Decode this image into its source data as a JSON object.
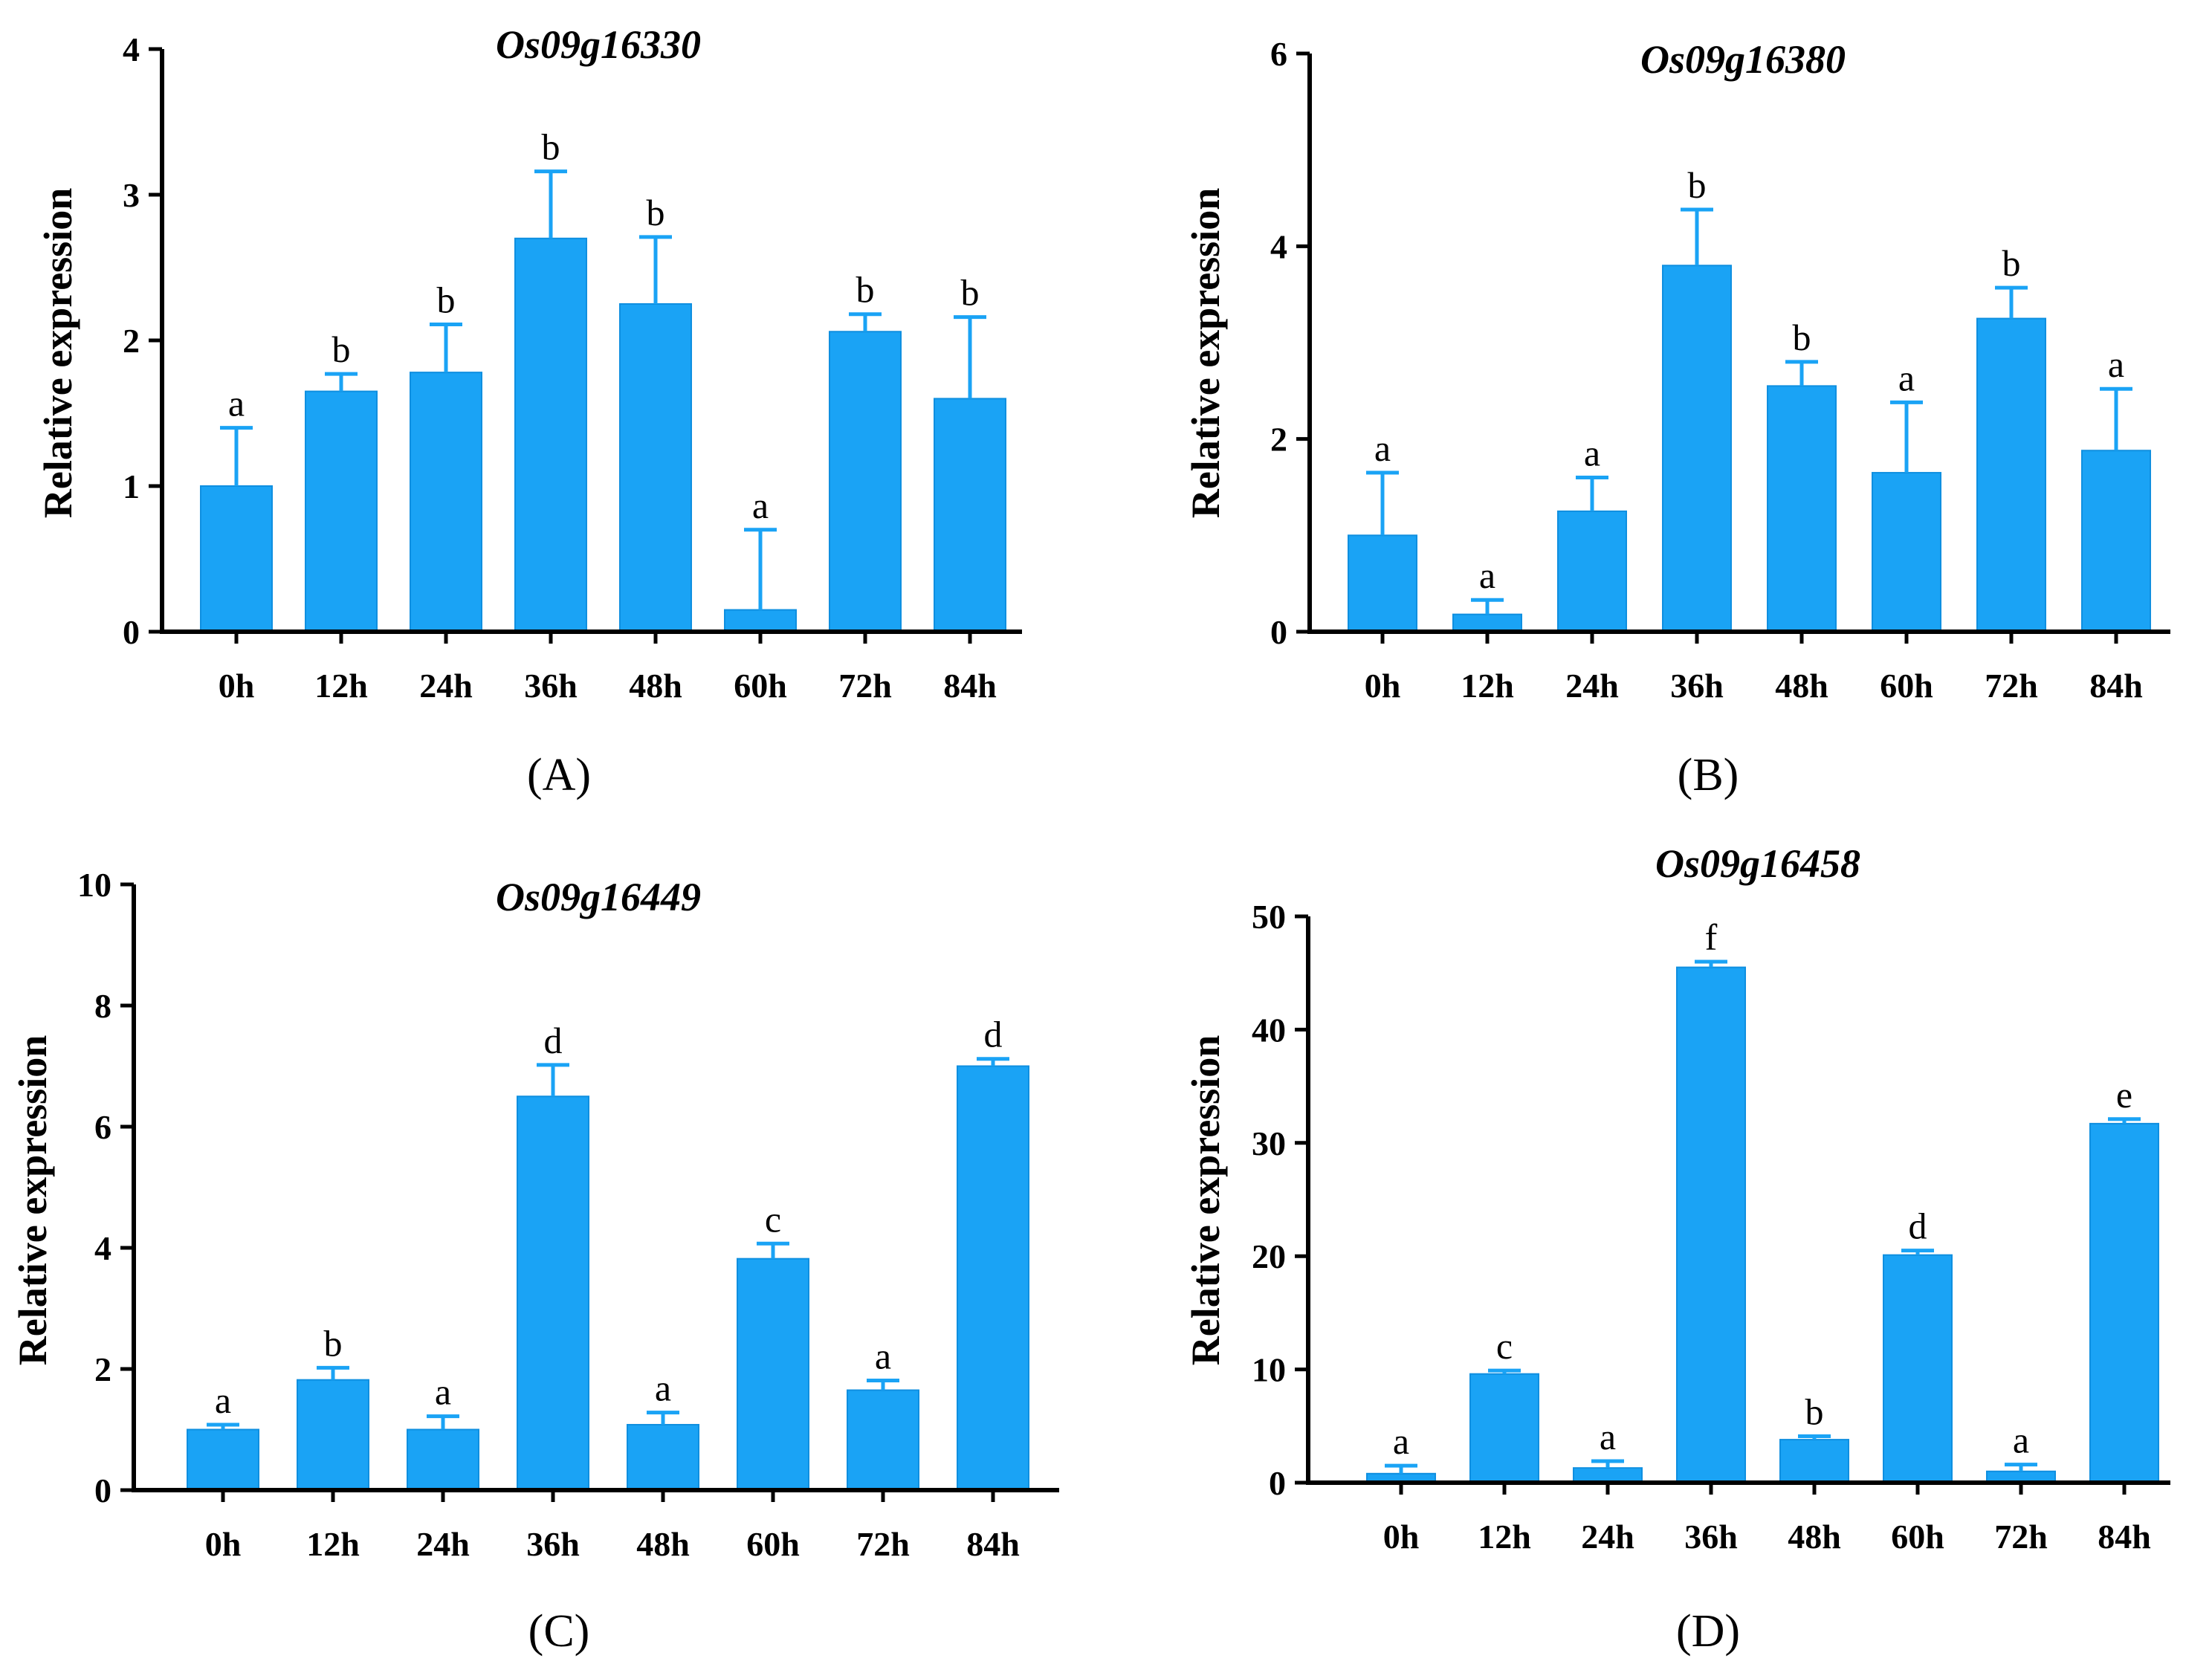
{
  "figure": {
    "colors": {
      "bar": "#1aa3f5",
      "bar_edge": "#0f8fe0",
      "axis": "#000000"
    },
    "panel_labels": {
      "A": "(A)",
      "B": "(B)",
      "C": "(C)",
      "D": "(D)"
    }
  },
  "chart_data": [
    {
      "type": "bar",
      "title": "Os09g16330",
      "xlabel": "",
      "ylabel": "Relative expression",
      "ylim": [
        0,
        4
      ],
      "yticks": [
        0,
        1,
        2,
        3,
        4
      ],
      "categories": [
        "0h",
        "12h",
        "24h",
        "36h",
        "48h",
        "60h",
        "72h",
        "84h"
      ],
      "values": [
        1.0,
        1.65,
        1.78,
        2.7,
        2.25,
        0.15,
        2.06,
        1.6
      ],
      "error": [
        0.4,
        0.12,
        0.33,
        0.46,
        0.46,
        0.55,
        0.12,
        0.56
      ],
      "significance": [
        "a",
        "b",
        "b",
        "b",
        "b",
        "a",
        "b",
        "b"
      ],
      "panel_label": "(A)"
    },
    {
      "type": "bar",
      "title": "Os09g16380",
      "xlabel": "",
      "ylabel": "Relative expression",
      "ylim": [
        0,
        6
      ],
      "yticks": [
        0,
        2,
        4,
        6
      ],
      "categories": [
        "0h",
        "12h",
        "24h",
        "36h",
        "48h",
        "60h",
        "72h",
        "84h"
      ],
      "values": [
        1.0,
        0.18,
        1.25,
        3.8,
        2.55,
        1.65,
        3.25,
        1.88
      ],
      "error": [
        0.65,
        0.15,
        0.35,
        0.58,
        0.25,
        0.73,
        0.32,
        0.64
      ],
      "significance": [
        "a",
        "a",
        "a",
        "b",
        "b",
        "a",
        "b",
        "a"
      ],
      "panel_label": "(B)"
    },
    {
      "type": "bar",
      "title": "Os09g16449",
      "xlabel": "",
      "ylabel": "Relative expression",
      "ylim": [
        0,
        10
      ],
      "yticks": [
        0,
        2,
        4,
        6,
        8,
        10
      ],
      "categories": [
        "0h",
        "12h",
        "24h",
        "36h",
        "48h",
        "60h",
        "72h",
        "84h"
      ],
      "values": [
        1.0,
        1.82,
        1.0,
        6.5,
        1.08,
        3.82,
        1.65,
        7.0
      ],
      "error": [
        0.08,
        0.2,
        0.22,
        0.52,
        0.2,
        0.25,
        0.16,
        0.12
      ],
      "significance": [
        "a",
        "b",
        "a",
        "d",
        "a",
        "c",
        "a",
        "d"
      ],
      "panel_label": "(C)"
    },
    {
      "type": "bar",
      "title": "Os09g16458",
      "xlabel": "",
      "ylabel": "Relative expression",
      "ylim": [
        0,
        50
      ],
      "yticks": [
        0,
        10,
        20,
        30,
        40,
        50
      ],
      "categories": [
        "0h",
        "12h",
        "24h",
        "36h",
        "48h",
        "60h",
        "72h",
        "84h"
      ],
      "values": [
        0.8,
        9.6,
        1.3,
        45.5,
        3.8,
        20.1,
        1.0,
        31.7
      ],
      "error": [
        0.7,
        0.3,
        0.6,
        0.5,
        0.3,
        0.4,
        0.6,
        0.4
      ],
      "significance": [
        "a",
        "c",
        "a",
        "f",
        "b",
        "d",
        "a",
        "e"
      ],
      "panel_label": "(D)"
    }
  ]
}
